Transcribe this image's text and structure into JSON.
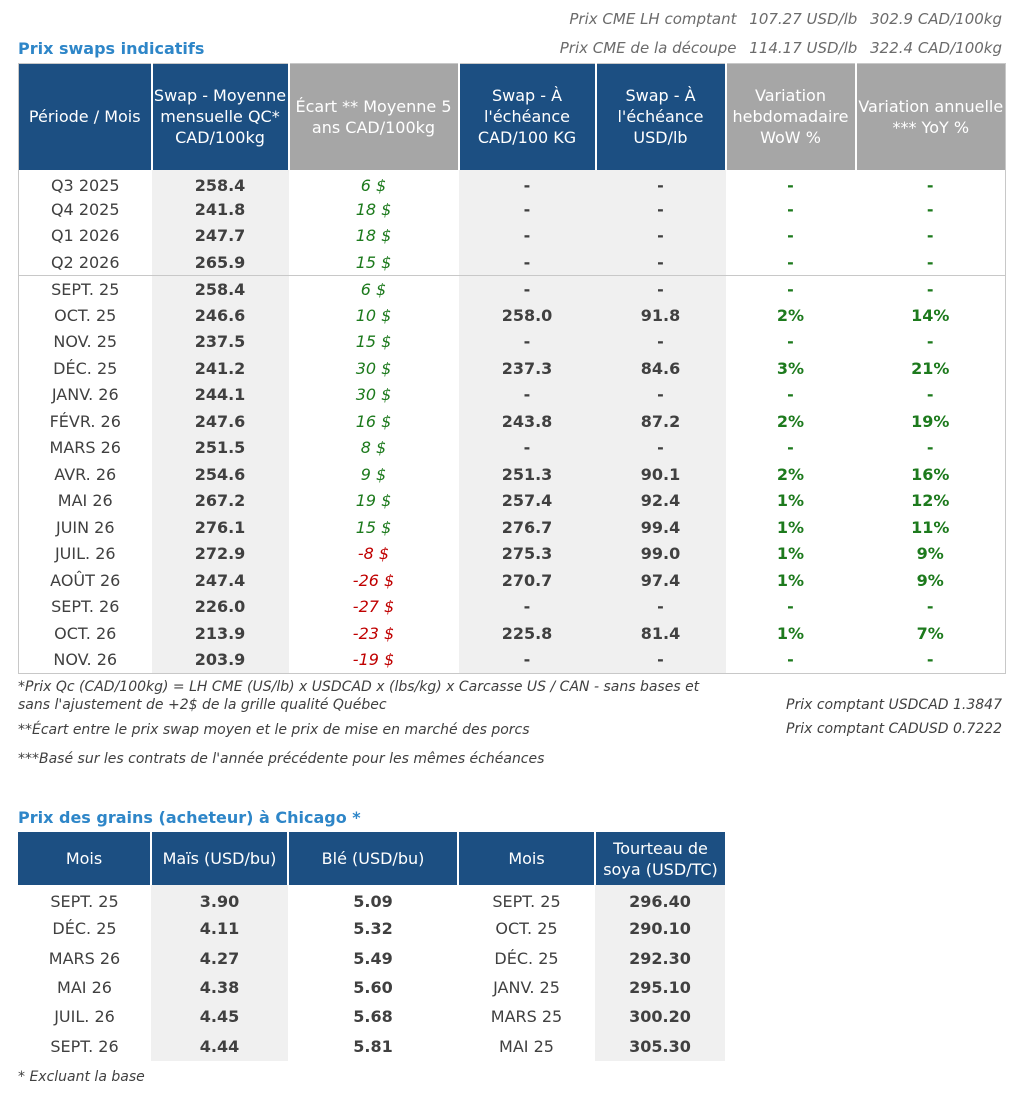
{
  "cme": {
    "lh_label": "Prix CME LH comptant",
    "lh_usd": "107.27 USD/lb",
    "lh_cad": "302.9 CAD/100kg",
    "cut_label": "Prix CME de la découpe",
    "cut_usd": "114.17 USD/lb",
    "cut_cad": "322.4 CAD/100kg"
  },
  "swap": {
    "title": "Prix swaps indicatifs",
    "headers": [
      "Période / Mois",
      "Swap - Moyenne mensuelle QC* CAD/100kg",
      "Écart ** Moyenne 5 ans CAD/100kg",
      "Swap - À l'échéance CAD/100 KG",
      "Swap - À l'échéance USD/lb",
      "Variation hebdomadaire WoW %",
      "Variation annuelle *** YoY %"
    ],
    "rows": [
      [
        "Q3 2025",
        "258.4",
        "6 $",
        "-",
        "-",
        "-",
        "-"
      ],
      [
        "Q4 2025",
        "241.8",
        "18 $",
        "-",
        "-",
        "-",
        "-"
      ],
      [
        "Q1 2026",
        "247.7",
        "18 $",
        "-",
        "-",
        "-",
        "-"
      ],
      [
        "Q2 2026",
        "265.9",
        "15 $",
        "-",
        "-",
        "-",
        "-"
      ],
      [
        "SEPT. 25",
        "258.4",
        "6 $",
        "-",
        "-",
        "-",
        "-"
      ],
      [
        "OCT. 25",
        "246.6",
        "10 $",
        "258.0",
        "91.8",
        "2%",
        "14%"
      ],
      [
        "NOV. 25",
        "237.5",
        "15 $",
        "-",
        "-",
        "-",
        "-"
      ],
      [
        "DÉC. 25",
        "241.2",
        "30 $",
        "237.3",
        "84.6",
        "3%",
        "21%"
      ],
      [
        "JANV. 26",
        "244.1",
        "30 $",
        "-",
        "-",
        "-",
        "-"
      ],
      [
        "FÉVR. 26",
        "247.6",
        "16 $",
        "243.8",
        "87.2",
        "2%",
        "19%"
      ],
      [
        "MARS 26",
        "251.5",
        "8 $",
        "-",
        "-",
        "-",
        "-"
      ],
      [
        "AVR. 26",
        "254.6",
        "9 $",
        "251.3",
        "90.1",
        "2%",
        "16%"
      ],
      [
        "MAI 26",
        "267.2",
        "19 $",
        "257.4",
        "92.4",
        "1%",
        "12%"
      ],
      [
        "JUIN 26",
        "276.1",
        "15 $",
        "276.7",
        "99.4",
        "1%",
        "11%"
      ],
      [
        "JUIL. 26",
        "272.9",
        "-8 $",
        "275.3",
        "99.0",
        "1%",
        "9%"
      ],
      [
        "AOÛT 26",
        "247.4",
        "-26 $",
        "270.7",
        "97.4",
        "1%",
        "9%"
      ],
      [
        "SEPT. 26",
        "226.0",
        "-27 $",
        "-",
        "-",
        "-",
        "-"
      ],
      [
        "OCT. 26",
        "213.9",
        "-23 $",
        "225.8",
        "81.4",
        "1%",
        "7%"
      ],
      [
        "NOV. 26",
        "203.9",
        "-19 $",
        "-",
        "-",
        "-",
        "-"
      ]
    ]
  },
  "notes": {
    "n1_line1": "*Prix Qc (CAD/100kg) = LH CME (US/lb) x USDCAD x (lbs/kg) x Carcasse US / CAN - sans bases et",
    "n1_line2": "sans l'ajustement de +2$ de la grille qualité Québec",
    "n2": "**Écart entre le prix swap moyen et le prix de mise en marché des porcs",
    "n3": "***Basé sur les contrats de l'année précédente pour les mêmes échéances",
    "usdcad": "Prix comptant USDCAD 1.3847",
    "cadusd": "Prix comptant CADUSD 0.7222"
  },
  "grains": {
    "title": "Prix des grains (acheteur) à Chicago *",
    "headers": [
      "Mois",
      "Maïs (USD/bu)",
      "Blé (USD/bu)",
      "Mois",
      "Tourteau de soya (USD/TC)"
    ],
    "rows": [
      [
        "SEPT. 25",
        "3.90",
        "5.09",
        "SEPT. 25",
        "296.40"
      ],
      [
        "DÉC. 25",
        "4.11",
        "5.32",
        "OCT. 25",
        "290.10"
      ],
      [
        "MARS 26",
        "4.27",
        "5.49",
        "DÉC. 25",
        "292.30"
      ],
      [
        "MAI 26",
        "4.38",
        "5.60",
        "JANV. 25",
        "295.10"
      ],
      [
        "JUIL. 26",
        "4.45",
        "5.68",
        "MARS 25",
        "300.20"
      ],
      [
        "SEPT. 26",
        "4.44",
        "5.81",
        "MAI 25",
        "305.30"
      ]
    ],
    "footnote": "* Excluant la base"
  }
}
